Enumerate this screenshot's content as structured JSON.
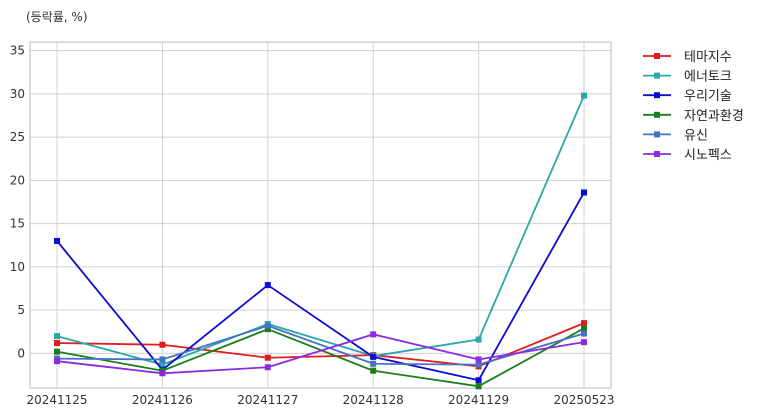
{
  "chart_data": {
    "type": "line",
    "title": "",
    "unit_label": "(등락률, %)",
    "xlabel": "",
    "ylabel": "",
    "categories": [
      "20241125",
      "20241126",
      "20241127",
      "20241128",
      "20241129",
      "20250523"
    ],
    "ylim": [
      -4,
      36
    ],
    "yticks": [
      0,
      5,
      10,
      15,
      20,
      25,
      30,
      35
    ],
    "grid": true,
    "legend": "right",
    "series": [
      {
        "name": "테마지수",
        "color": "#e41a1c",
        "values": [
          1.2,
          1.0,
          -0.5,
          -0.2,
          -1.5,
          3.5
        ]
      },
      {
        "name": "에너토크",
        "color": "#2aa8a8",
        "values": [
          2.0,
          -1.3,
          3.4,
          -0.3,
          1.6,
          29.8
        ]
      },
      {
        "name": "우리기술",
        "color": "#0b0bd1",
        "values": [
          13.0,
          -1.9,
          7.9,
          -0.4,
          -3.1,
          18.6
        ]
      },
      {
        "name": "자연과환경",
        "color": "#1a7f1a",
        "values": [
          0.2,
          -2.0,
          2.8,
          -2.0,
          -3.8,
          2.9
        ]
      },
      {
        "name": "유신",
        "color": "#4472c4",
        "values": [
          -0.6,
          -0.7,
          3.2,
          -1.2,
          -1.3,
          2.3
        ]
      },
      {
        "name": "시노펙스",
        "color": "#8a2be2",
        "values": [
          -0.9,
          -2.3,
          -1.6,
          2.2,
          -0.7,
          1.3
        ]
      }
    ]
  }
}
